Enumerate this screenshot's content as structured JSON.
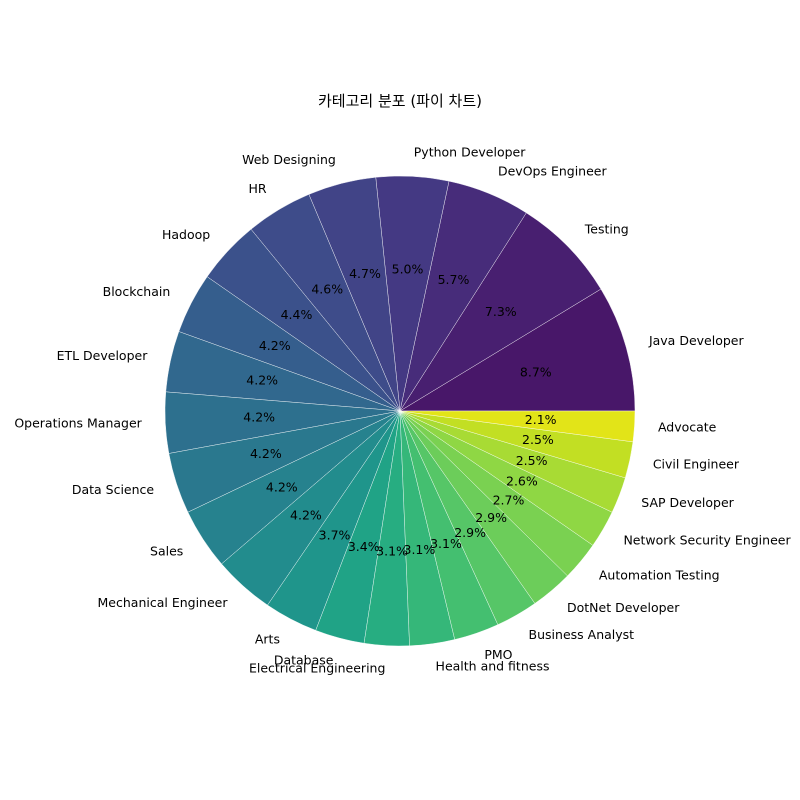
{
  "chart_data": {
    "type": "pie",
    "title": "카테고리 분포 (파이 차트)",
    "start_angle_deg": 0,
    "direction": "counterclockwise",
    "slices": [
      {
        "label": "Java Developer",
        "value": 8.7,
        "pct_label": "8.7%",
        "color": "#481769"
      },
      {
        "label": "Testing",
        "value": 7.3,
        "pct_label": "7.3%",
        "color": "#481f70"
      },
      {
        "label": "DevOps Engineer",
        "value": 5.7,
        "pct_label": "5.7%",
        "color": "#472c7a"
      },
      {
        "label": "Python Developer",
        "value": 5.0,
        "pct_label": "5.0%",
        "color": "#443983"
      },
      {
        "label": "Web Designing",
        "value": 4.7,
        "pct_label": "4.7%",
        "color": "#414487"
      },
      {
        "label": "HR",
        "value": 4.6,
        "pct_label": "4.6%",
        "color": "#3e4c8a"
      },
      {
        "label": "Hadoop",
        "value": 4.4,
        "pct_label": "4.4%",
        "color": "#3b518b"
      },
      {
        "label": "Blockchain",
        "value": 4.2,
        "pct_label": "4.2%",
        "color": "#355e8d"
      },
      {
        "label": "ETL Developer",
        "value": 4.2,
        "pct_label": "4.2%",
        "color": "#31688e"
      },
      {
        "label": "Operations Manager",
        "value": 4.2,
        "pct_label": "4.2%",
        "color": "#2d708e"
      },
      {
        "label": "Data Science",
        "value": 4.2,
        "pct_label": "4.2%",
        "color": "#2a788e"
      },
      {
        "label": "Sales",
        "value": 4.2,
        "pct_label": "4.2%",
        "color": "#26828e"
      },
      {
        "label": "Mechanical Engineer",
        "value": 4.2,
        "pct_label": "4.2%",
        "color": "#228c8d"
      },
      {
        "label": "Arts",
        "value": 3.7,
        "pct_label": "3.7%",
        "color": "#1f958b"
      },
      {
        "label": "Database",
        "value": 3.4,
        "pct_label": "3.4%",
        "color": "#20a386"
      },
      {
        "label": "Electrical Engineering",
        "value": 3.1,
        "pct_label": "3.1%",
        "color": "#27ad81"
      },
      {
        "label": "Health and fitness",
        "value": 3.1,
        "pct_label": "3.1%",
        "color": "#35b779"
      },
      {
        "label": "PMO",
        "value": 3.1,
        "pct_label": "3.1%",
        "color": "#44bf70"
      },
      {
        "label": "Business Analyst",
        "value": 2.9,
        "pct_label": "2.9%",
        "color": "#56c667"
      },
      {
        "label": "DotNet Developer",
        "value": 2.9,
        "pct_label": "2.9%",
        "color": "#6ccd5a"
      },
      {
        "label": "Automation Testing",
        "value": 2.7,
        "pct_label": "2.7%",
        "color": "#7ad151"
      },
      {
        "label": "Network Security Engineer",
        "value": 2.6,
        "pct_label": "2.6%",
        "color": "#8fd744"
      },
      {
        "label": "SAP Developer",
        "value": 2.5,
        "pct_label": "2.5%",
        "color": "#a8db34"
      },
      {
        "label": "Civil Engineer",
        "value": 2.5,
        "pct_label": "2.5%",
        "color": "#c2df23"
      },
      {
        "label": "Advocate",
        "value": 2.1,
        "pct_label": "2.1%",
        "color": "#e2e418"
      }
    ]
  }
}
